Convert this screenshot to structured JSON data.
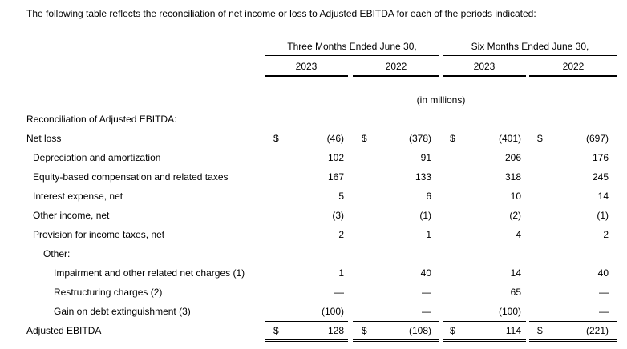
{
  "intro": "The following table reflects the reconciliation of net income or loss to Adjusted EBITDA for each of the periods indicated:",
  "header": {
    "groups": [
      "Three Months Ended June 30,",
      "Six Months Ended June 30,"
    ],
    "years": [
      "2023",
      "2022",
      "2023",
      "2022"
    ],
    "units": "(in millions)"
  },
  "section_title": "Reconciliation of Adjusted EBITDA:",
  "rows": [
    {
      "label": "Net loss",
      "level": 0,
      "dollar": true,
      "values": [
        "(46)",
        "(378)",
        "(401)",
        "(697)"
      ]
    },
    {
      "label": "Depreciation and amortization",
      "level": 1,
      "dollar": false,
      "values": [
        "102",
        "91",
        "206",
        "176"
      ]
    },
    {
      "label": "Equity-based compensation and related taxes",
      "level": 1,
      "dollar": false,
      "values": [
        "167",
        "133",
        "318",
        "245"
      ]
    },
    {
      "label": "Interest expense, net",
      "level": 1,
      "dollar": false,
      "values": [
        "5",
        "6",
        "10",
        "14"
      ]
    },
    {
      "label": "Other income, net",
      "level": 1,
      "dollar": false,
      "values": [
        "(3)",
        "(1)",
        "(2)",
        "(1)"
      ]
    },
    {
      "label": "Provision for income taxes, net",
      "level": 1,
      "dollar": false,
      "values": [
        "2",
        "1",
        "4",
        "2"
      ]
    },
    {
      "label": "Other:",
      "level": 2,
      "dollar": false,
      "values": [
        "",
        "",
        "",
        ""
      ]
    },
    {
      "label": "Impairment and other related net charges (1)",
      "level": 3,
      "dollar": false,
      "values": [
        "1",
        "40",
        "14",
        "40"
      ]
    },
    {
      "label": "Restructuring charges (2)",
      "level": 3,
      "dollar": false,
      "values": [
        "—",
        "—",
        "65",
        "—"
      ]
    },
    {
      "label": "Gain on debt extinguishment (3)",
      "level": 3,
      "dollar": false,
      "values": [
        "(100)",
        "—",
        "(100)",
        "—"
      ]
    },
    {
      "label": "Adjusted EBITDA",
      "level": 0,
      "dollar": true,
      "values": [
        "128",
        "(108)",
        "114",
        "(221)"
      ]
    }
  ],
  "currency_symbol": "$"
}
